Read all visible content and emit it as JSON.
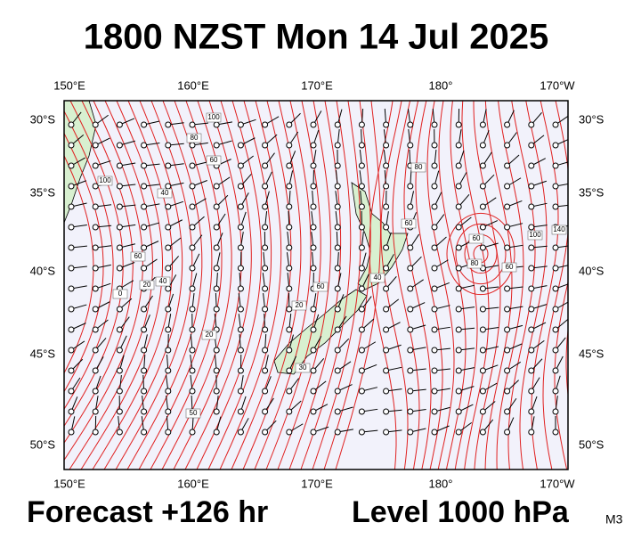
{
  "title": "1800 NZST Mon 14 Jul 2025",
  "longitude_labels": [
    "150°E",
    "160°E",
    "170°E",
    "180°",
    "170°W"
  ],
  "latitude_labels": [
    "30°S",
    "35°S",
    "40°S",
    "45°S",
    "50°S"
  ],
  "contour_labels": [
    "100",
    "80",
    "60",
    "40",
    "100",
    "60",
    "20",
    "0",
    "40",
    "20",
    "50",
    "20",
    "60",
    "30",
    "40",
    "60",
    "80",
    "60",
    "80",
    "60",
    "100",
    "140"
  ],
  "footer": {
    "forecast": "Forecast +126 hr",
    "level": "Level 1000 hPa",
    "model": "M3"
  }
}
